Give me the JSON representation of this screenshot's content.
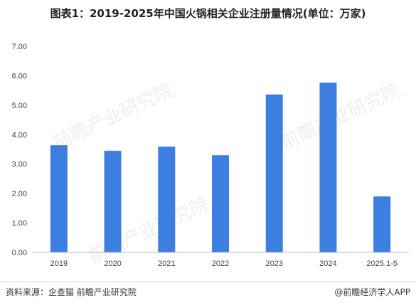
{
  "title": "图表1：2019-2025年中国火锅相关企业注册量情况(单位：万家)",
  "source": "资料来源：企查猫 前瞻产业研究院",
  "credit": "@前瞻经济学人APP",
  "watermark": "前瞻产业研究院",
  "colors": {
    "bar": "#3d7fe0",
    "axis": "#bfbfbf",
    "text": "#444444"
  },
  "chart_data": {
    "type": "bar",
    "categories": [
      "2019",
      "2020",
      "2021",
      "2022",
      "2023",
      "2024",
      "2025.1-5"
    ],
    "values": [
      3.64,
      3.45,
      3.59,
      3.3,
      5.36,
      5.76,
      1.9
    ],
    "ylim": [
      0,
      7
    ],
    "yticks": [
      "0.00",
      "1.00",
      "2.00",
      "3.00",
      "4.00",
      "5.00",
      "6.00",
      "7.00"
    ],
    "grid": false,
    "legend": "none"
  }
}
